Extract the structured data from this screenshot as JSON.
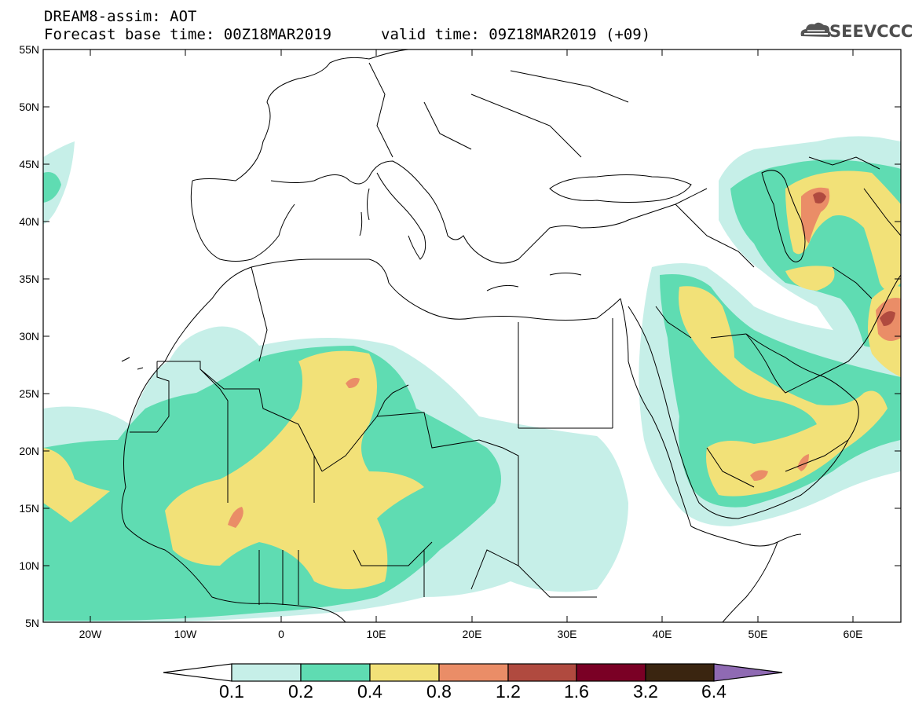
{
  "header": {
    "title": "DREAM8-assim: AOT",
    "base_time": "Forecast base time: 00Z18MAR2019",
    "valid_time": "valid time: 09Z18MAR2019 (+09)",
    "logo_text": "SEEVCCC"
  },
  "map": {
    "lat_labels": [
      "55N",
      "50N",
      "45N",
      "40N",
      "35N",
      "30N",
      "25N",
      "20N",
      "15N",
      "10N",
      "5N"
    ],
    "lon_labels": [
      "20W",
      "10W",
      "0",
      "10E",
      "20E",
      "30E",
      "40E",
      "50E",
      "60E"
    ],
    "extent": {
      "lon": [
        -25,
        65
      ],
      "lat": [
        5,
        55
      ]
    }
  },
  "colorbar": {
    "levels": [
      "0.1",
      "0.2",
      "0.4",
      "0.8",
      "1.2",
      "1.6",
      "3.2",
      "6.4"
    ],
    "colors": [
      "#c6efe8",
      "#5fdcb2",
      "#f2e178",
      "#ea8d67",
      "#b04a3f",
      "#7a0025",
      "#3a2510",
      "#8f6ab3"
    ]
  }
}
